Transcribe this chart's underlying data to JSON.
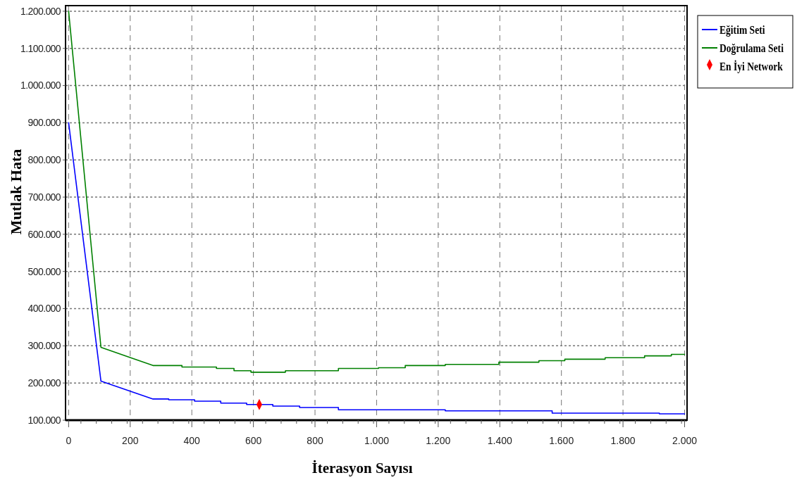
{
  "chart_data": {
    "type": "line",
    "xlabel": "İterasyon Sayısı",
    "ylabel": "Mutlak Hata",
    "xlim": [
      -10,
      2008
    ],
    "ylim": [
      100000,
      1215000
    ],
    "xticks": [
      0,
      200,
      400,
      600,
      800,
      {
        "value": 1000,
        "label": "1.000"
      },
      {
        "value": 1200,
        "label": "1.200"
      },
      {
        "value": 1400,
        "label": "1.400"
      },
      {
        "value": 1600,
        "label": "1.600"
      },
      {
        "value": 1800,
        "label": "1.800"
      },
      {
        "value": 2000,
        "label": "2.000"
      }
    ],
    "yticks": [
      {
        "value": 100000,
        "label": "100.000"
      },
      {
        "value": 200000,
        "label": "200.000"
      },
      {
        "value": 300000,
        "label": "300.000"
      },
      {
        "value": 400000,
        "label": "400.000"
      },
      {
        "value": 500000,
        "label": "500.000"
      },
      {
        "value": 600000,
        "label": "600.000"
      },
      {
        "value": 700000,
        "label": "700.000"
      },
      {
        "value": 800000,
        "label": "800.000"
      },
      {
        "value": 900000,
        "label": "900.000"
      },
      {
        "value": 1000000,
        "label": "1.000.000"
      },
      {
        "value": 1100000,
        "label": "1.100.000"
      },
      {
        "value": 1200000,
        "label": "1.200.000"
      }
    ],
    "grid": true,
    "legend": "top right",
    "marker": "none",
    "line_style": "solid",
    "series": [
      {
        "name": "Eğitim Seti",
        "color": "#0000ff",
        "x": [
          0,
          105,
          274,
          325,
          325,
          409,
          409,
          494,
          494,
          578,
          578,
          663,
          663,
          750,
          750,
          876,
          876,
          1223,
          1223,
          1570,
          1570,
          1918,
          1918,
          2000
        ],
        "values": [
          900000,
          205000,
          157000,
          157000,
          155000,
          155000,
          151000,
          151000,
          146000,
          146000,
          142000,
          142000,
          138000,
          138000,
          134000,
          134000,
          128000,
          128000,
          125000,
          125000,
          119000,
          119000,
          117000,
          117000
        ]
      },
      {
        "name": "Doğrulama Seti",
        "color": "#008000",
        "x": [
          0,
          105,
          274,
          368,
          368,
          480,
          480,
          537,
          537,
          592,
          592,
          704,
          704,
          876,
          876,
          1006,
          1006,
          1093,
          1093,
          1223,
          1223,
          1397,
          1397,
          1527,
          1527,
          1611,
          1611,
          1742,
          1742,
          1870,
          1870,
          1957,
          1957,
          2000
        ],
        "values": [
          1200000,
          296000,
          247000,
          247000,
          243000,
          243000,
          239000,
          239000,
          233000,
          233000,
          229000,
          229000,
          233000,
          233000,
          239000,
          239000,
          241000,
          241000,
          247000,
          247000,
          250000,
          250000,
          256000,
          256000,
          260000,
          260000,
          264000,
          264000,
          268000,
          268000,
          273000,
          273000,
          277000,
          277000
        ]
      },
      {
        "name": "En İyi Network",
        "type": "scatter",
        "marker": "diamond",
        "color": "#ff0000",
        "x": [
          619
        ],
        "values": [
          142000
        ]
      }
    ]
  }
}
